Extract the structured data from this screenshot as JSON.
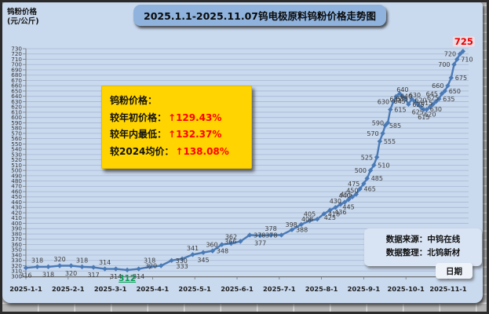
{
  "header": {
    "unit_line1": "钨粉价格",
    "unit_line2": "(元/公斤)",
    "title": "2025.1.1-2025.11.07钨电极原料钨粉价格走势图"
  },
  "annotation_box": {
    "title": "钨粉价格：",
    "rows": [
      {
        "label": "较年初价格：",
        "value": "↑129.43%"
      },
      {
        "label": "较年内最低：",
        "value": "↑132.37%"
      },
      {
        "label": "较2024均价：",
        "value": "↑138.08%"
      }
    ],
    "bg_color": "#FFD400",
    "value_color": "#FF0000"
  },
  "source_box": {
    "line1": "数据来源：中钨在线",
    "line2": "数据整理：北钨新材"
  },
  "x_axis_title": "日期",
  "chart_data": {
    "type": "line",
    "title": "2025.1.1-2025.11.07钨电极原料钨粉价格走势图",
    "xlabel": "日期",
    "ylabel": "钨粉价格(元/公斤)",
    "ylim": [
      300,
      730
    ],
    "y_step": 10,
    "grid": "horizontal",
    "legend": "none",
    "line_color": "#4a7ab5",
    "grid_color": "#a8b8d2",
    "x_tick_labels": [
      "2025-1-1",
      "2025-2-1",
      "2025-3-1",
      "2025-4-1",
      "2025-5-1",
      "2025-6-1",
      "2025-7-1",
      "2025-8-1",
      "2025-9-1",
      "2025-10-1",
      "2025-11-1"
    ],
    "min_point": {
      "value": 312,
      "color": "#00A050"
    },
    "max_point": {
      "value": 725,
      "color": "#FF0000"
    },
    "series": [
      {
        "name": "钨粉价格",
        "x_unit": "months_since_2025-1-1",
        "points": [
          [
            0,
            316
          ],
          [
            0.27,
            318
          ],
          [
            0.53,
            318
          ],
          [
            0.8,
            320
          ],
          [
            1.07,
            320
          ],
          [
            1.33,
            318
          ],
          [
            1.6,
            317
          ],
          [
            1.87,
            314
          ],
          [
            2.13,
            314
          ],
          [
            2.4,
            312
          ],
          [
            2.67,
            314
          ],
          [
            2.93,
            318
          ],
          [
            3.2,
            320
          ],
          [
            3.45,
            330
          ],
          [
            3.7,
            333
          ],
          [
            3.95,
            341
          ],
          [
            4.2,
            345
          ],
          [
            4.42,
            348
          ],
          [
            4.64,
            360
          ],
          [
            4.86,
            362
          ],
          [
            5.08,
            366
          ],
          [
            5.3,
            378
          ],
          [
            5.55,
            377
          ],
          [
            5.8,
            378
          ],
          [
            6.05,
            378
          ],
          [
            6.3,
            388
          ],
          [
            6.52,
            398
          ],
          [
            6.72,
            405
          ],
          [
            6.9,
            408
          ],
          [
            7.06,
            418
          ],
          [
            7.2,
            425
          ],
          [
            7.33,
            430
          ],
          [
            7.45,
            436
          ],
          [
            7.55,
            440
          ],
          [
            7.64,
            445
          ],
          [
            7.73,
            450
          ],
          [
            7.82,
            455
          ],
          [
            7.91,
            465
          ],
          [
            8,
            475
          ],
          [
            8.08,
            485
          ],
          [
            8.16,
            500
          ],
          [
            8.24,
            510
          ],
          [
            8.31,
            525
          ],
          [
            8.38,
            555
          ],
          [
            8.45,
            570
          ],
          [
            8.51,
            585
          ],
          [
            8.57,
            590
          ],
          [
            8.63,
            615
          ],
          [
            8.7,
            630
          ],
          [
            8.77,
            640
          ],
          [
            8.85,
            645
          ],
          [
            8.92,
            640
          ],
          [
            8.99,
            635
          ],
          [
            9.06,
            625
          ],
          [
            9.14,
            635
          ],
          [
            9.21,
            630
          ],
          [
            9.28,
            625
          ],
          [
            9.35,
            620
          ],
          [
            9.42,
            615
          ],
          [
            9.49,
            615
          ],
          [
            9.57,
            620
          ],
          [
            9.64,
            625
          ],
          [
            9.71,
            630
          ],
          [
            9.78,
            635
          ],
          [
            9.85,
            645
          ],
          [
            9.92,
            650
          ],
          [
            9.99,
            660
          ],
          [
            10.07,
            675
          ],
          [
            10.14,
            700
          ],
          [
            10.21,
            710
          ],
          [
            10.28,
            720
          ],
          [
            10.35,
            725
          ]
        ]
      }
    ]
  }
}
